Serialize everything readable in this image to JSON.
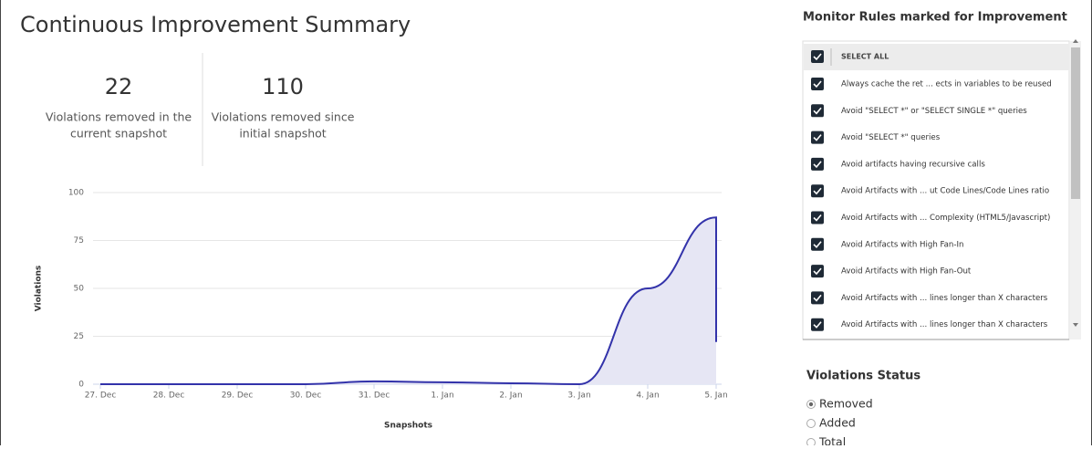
{
  "header": {
    "title": "Continuous Improvement Summary"
  },
  "stats": [
    {
      "value": "22",
      "label": [
        "Violations removed in the",
        "current snapshot"
      ]
    },
    {
      "value": "110",
      "label": [
        "Violations removed since",
        "initial snapshot"
      ]
    }
  ],
  "chart_data": {
    "type": "area",
    "x": [
      0,
      1,
      2,
      3,
      4,
      5,
      6,
      7,
      8,
      9,
      9
    ],
    "values": [
      0,
      0,
      0,
      0,
      1.5,
      1,
      0.5,
      0,
      50,
      87,
      22
    ],
    "color": "#3333aa",
    "fill": "#e6e6f4",
    "xlim": [
      0,
      9
    ],
    "xticks": [
      {
        "value": 0,
        "label": "27. Dec"
      },
      {
        "value": 1,
        "label": "28. Dec"
      },
      {
        "value": 2,
        "label": "29. Dec"
      },
      {
        "value": 3,
        "label": "30. Dec"
      },
      {
        "value": 4,
        "label": "31. Dec"
      },
      {
        "value": 5,
        "label": "1. Jan"
      },
      {
        "value": 6,
        "label": "2. Jan"
      },
      {
        "value": 7,
        "label": "3. Jan"
      },
      {
        "value": 8,
        "label": "4. Jan"
      },
      {
        "value": 9,
        "label": "5. Jan"
      }
    ],
    "ylim": [
      0,
      100
    ],
    "yticks": [
      0,
      25,
      50,
      75,
      100
    ],
    "grid": true,
    "x_label": "Snapshots",
    "y_label": "Violations"
  },
  "rules_panel": {
    "title": "Monitor Rules marked for Improvement",
    "select_all": "SELECT ALL",
    "rules": [
      "Always cache the ret ... ects in variables to be reused",
      "Avoid \"SELECT *\" or \"SELECT SINGLE *\" queries",
      "Avoid \"SELECT *\" queries",
      "Avoid artifacts having recursive calls",
      "Avoid Artifacts with ... ut Code Lines/Code Lines ratio",
      "Avoid Artifacts with ... Complexity (HTML5/Javascript)",
      "Avoid Artifacts with High Fan-In",
      "Avoid Artifacts with High Fan-Out",
      "Avoid Artifacts with ... lines longer than X characters",
      "Avoid Artifacts with ... lines longer than X characters"
    ]
  },
  "status_panel": {
    "title": "Violations Status",
    "options": [
      "Removed",
      "Added",
      "Total"
    ],
    "selected": 0
  }
}
